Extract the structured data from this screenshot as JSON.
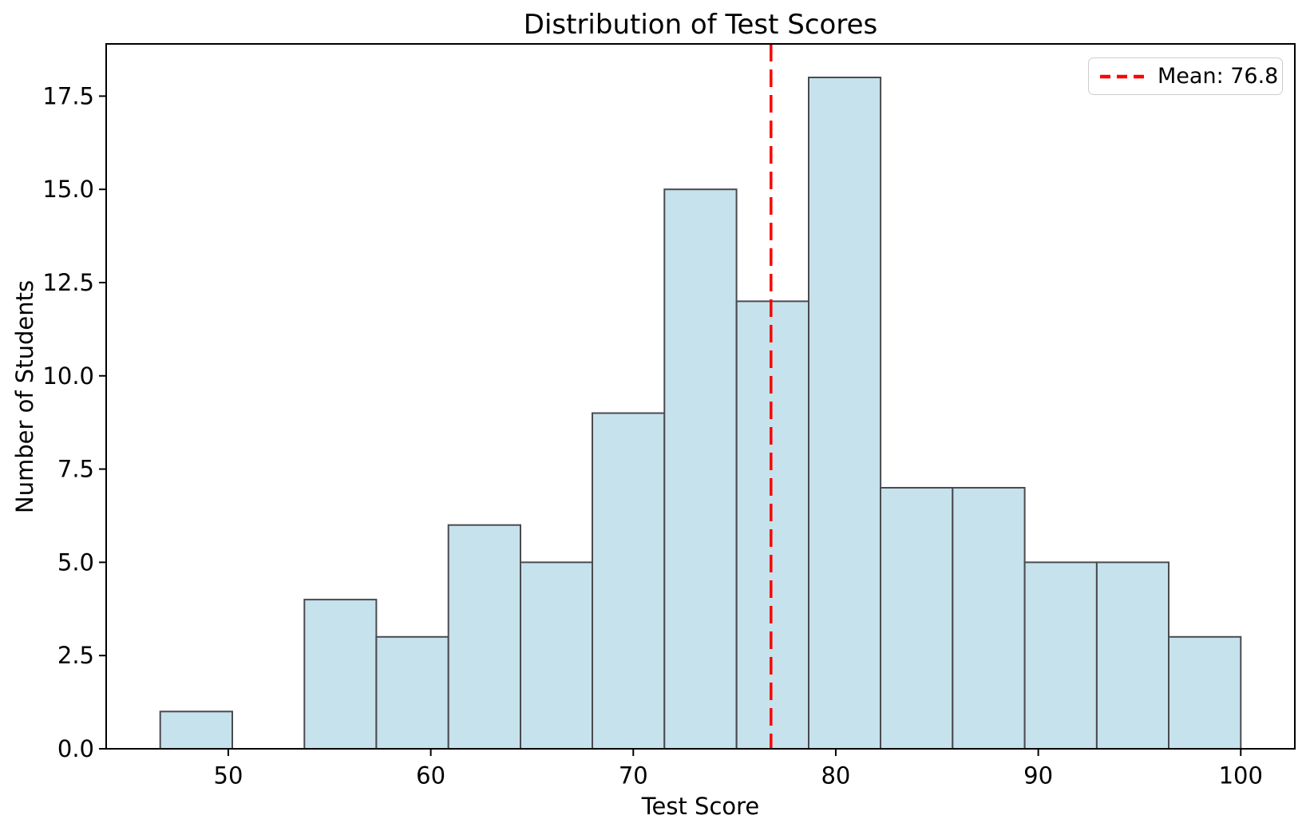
{
  "chart_data": {
    "type": "histogram",
    "title": "Distribution of Test Scores",
    "xlabel": "Test Score",
    "ylabel": "Number of Students",
    "bin_edges": [
      46.64,
      50.2,
      53.76,
      57.31,
      60.87,
      64.43,
      67.98,
      71.54,
      75.1,
      78.66,
      82.21,
      85.77,
      89.33,
      92.89,
      96.44,
      100.0
    ],
    "counts": [
      1,
      0,
      4,
      3,
      6,
      5,
      9,
      15,
      12,
      18,
      7,
      7,
      5,
      5,
      3
    ],
    "mean_value": 76.8,
    "mean_line_style": "dashed",
    "legend": {
      "position": "upper right",
      "entries": [
        {
          "label": "Mean: 76.8",
          "line_style": "dashed",
          "color": "#ff0000"
        }
      ]
    },
    "xticks": [
      50,
      60,
      70,
      80,
      90,
      100
    ],
    "xtick_labels": [
      "50",
      "60",
      "70",
      "80",
      "90",
      "100"
    ],
    "yticks": [
      0,
      2.5,
      5,
      7.5,
      10,
      12.5,
      15,
      17.5
    ],
    "ytick_labels": [
      "0.0",
      "2.5",
      "5.0",
      "7.5",
      "10.0",
      "12.5",
      "15.0",
      "17.5"
    ],
    "xlim": [
      43.97,
      102.67
    ],
    "ylim": [
      0,
      18.9
    ],
    "grid": false,
    "colors": {
      "bar_fill": "#c6e2ec",
      "bar_edge": "#4a4a4f",
      "mean_line": "#ff0000",
      "axis": "#000000",
      "text": "#000000",
      "legend_border": "#cccccc"
    }
  }
}
